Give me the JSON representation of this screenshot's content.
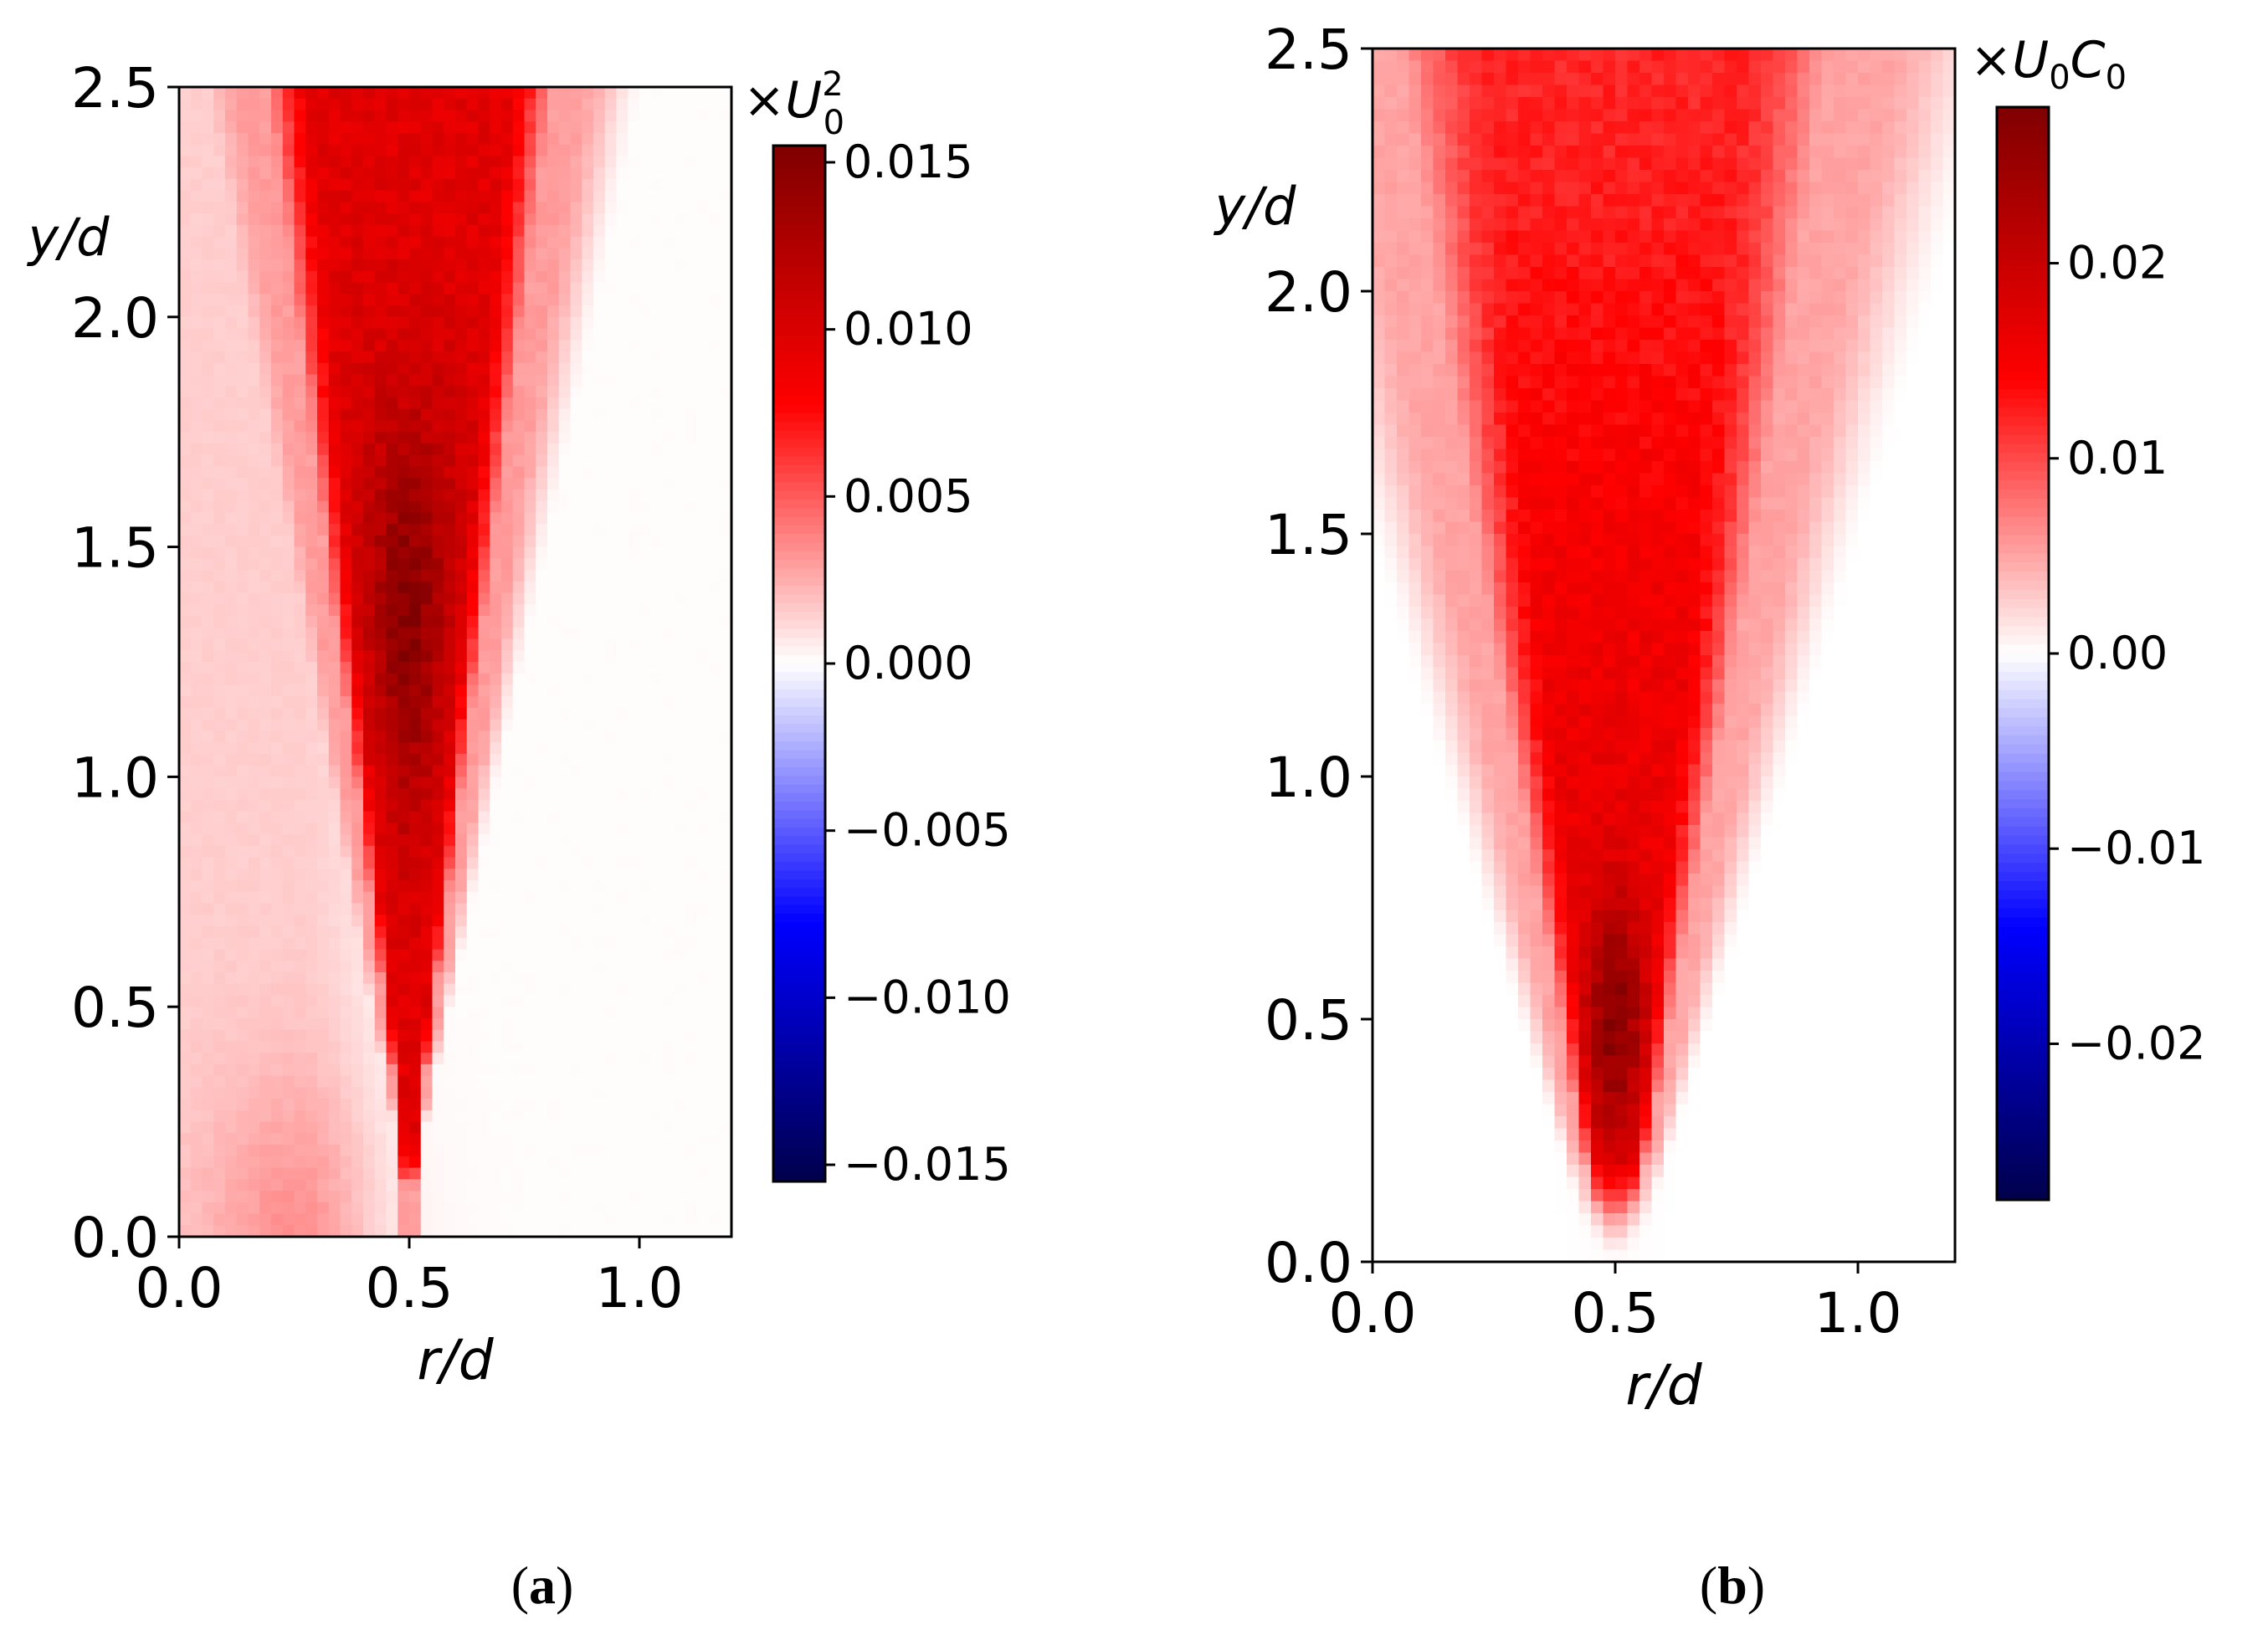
{
  "figure": {
    "captions": [
      {
        "open": "(",
        "letter": "a",
        "close": ")"
      },
      {
        "open": "(",
        "letter": "b",
        "close": ")"
      }
    ]
  },
  "colors": {
    "colormap": "seismic",
    "seismic_stops": [
      "#00004c",
      "#0000ff",
      "#ffffff",
      "#ff0000",
      "#7f0000"
    ],
    "frame": "#000000",
    "text": "#000000",
    "background": "#ffffff"
  },
  "chart_data": [
    {
      "type": "heatmap",
      "panel": "a",
      "xlabel": "r/d",
      "ylabel": "y/d",
      "xlim": [
        0.0,
        1.2
      ],
      "ylim": [
        0.0,
        2.5
      ],
      "xticks": [
        0.0,
        0.5,
        1.0
      ],
      "xtick_labels": [
        "0.0",
        "0.5",
        "1.0"
      ],
      "yticks": [
        0.0,
        0.5,
        1.0,
        1.5,
        2.0,
        2.5
      ],
      "ytick_labels": [
        "0.0",
        "0.5",
        "1.0",
        "1.5",
        "2.0",
        "2.5"
      ],
      "colorbar": {
        "label_prefix": "×",
        "label_symbol": "U",
        "label_superscript": "2",
        "label_subscript": "0",
        "vmin": -0.0155,
        "vmax": 0.0155,
        "ticks": [
          -0.015,
          -0.01,
          -0.005,
          0.0,
          0.005,
          0.01,
          0.015
        ],
        "tick_labels": [
          "−0.015",
          "−0.010",
          "−0.005",
          "0.000",
          "0.005",
          "0.010",
          "0.015"
        ]
      },
      "field": {
        "description": "triangular shear-layer band",
        "center_r": 0.5,
        "peak_value": 0.0148,
        "peak_y": 1.35,
        "apex_y": 0.2,
        "half_width_top": 0.36,
        "ambient_left": 0.0015,
        "ambient_right": 0.0001,
        "band_level": 0.0095
      }
    },
    {
      "type": "heatmap",
      "panel": "b",
      "xlabel": "r/d",
      "ylabel": "y/d",
      "xlim": [
        0.0,
        1.2
      ],
      "ylim": [
        0.0,
        2.5
      ],
      "xticks": [
        0.0,
        0.5,
        1.0
      ],
      "xtick_labels": [
        "0.0",
        "0.5",
        "1.0"
      ],
      "yticks": [
        0.0,
        0.5,
        1.0,
        1.5,
        2.0,
        2.5
      ],
      "ytick_labels": [
        "0.0",
        "0.5",
        "1.0",
        "1.5",
        "2.0",
        "2.5"
      ],
      "colorbar": {
        "label_prefix": "×",
        "label_symbol_1": "U",
        "label_sub_1": "0",
        "label_symbol_2": "C",
        "label_sub_2": "0",
        "vmin": -0.028,
        "vmax": 0.028,
        "ticks": [
          -0.02,
          -0.01,
          0.0,
          0.01,
          0.02
        ],
        "tick_labels": [
          "−0.02",
          "−0.01",
          "0.00",
          "0.01",
          "0.02"
        ]
      },
      "field": {
        "description": "widening plume from apex",
        "center_r": 0.5,
        "peak_value": 0.027,
        "peak_y": 0.5,
        "apex_y": 0.0,
        "half_width_top": 0.55,
        "ambient_left": 0.0,
        "ambient_right": 0.0,
        "band_level": 0.016
      }
    }
  ]
}
